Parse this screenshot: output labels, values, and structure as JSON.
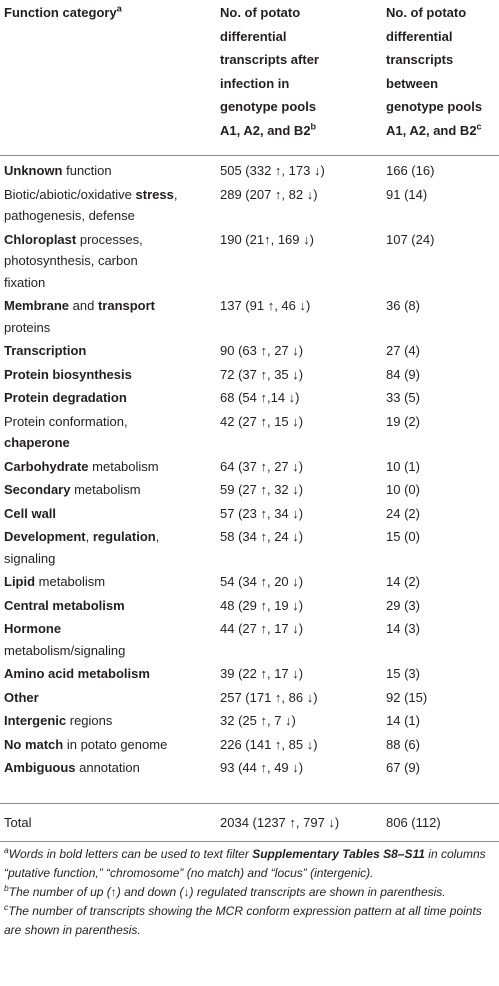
{
  "table": {
    "header": [
      [
        [
          {
            "text": "Function category",
            "bold": true
          },
          {
            "text": "a",
            "bold": true,
            "sup": true
          }
        ]
      ],
      [
        [
          {
            "text": "No. of potato",
            "bold": true
          }
        ],
        [
          {
            "text": "differential",
            "bold": true
          }
        ],
        [
          {
            "text": "transcripts after",
            "bold": true
          }
        ],
        [
          {
            "text": "infection in",
            "bold": true
          }
        ],
        [
          {
            "text": "genotype pools",
            "bold": true
          }
        ],
        [
          {
            "text": "A1, A2, and B2",
            "bold": true
          },
          {
            "text": "b",
            "bold": true,
            "sup": true
          }
        ]
      ],
      [
        [
          {
            "text": "No. of potato",
            "bold": true
          }
        ],
        [
          {
            "text": "differential",
            "bold": true
          }
        ],
        [
          {
            "text": "transcripts",
            "bold": true
          }
        ],
        [
          {
            "text": "between",
            "bold": true
          }
        ],
        [
          {
            "text": "genotype pools",
            "bold": true
          }
        ],
        [
          {
            "text": "A1, A2, and B2",
            "bold": true
          },
          {
            "text": "c",
            "bold": true,
            "sup": true
          }
        ]
      ]
    ],
    "rows": [
      {
        "category": [
          [
            {
              "text": "Unknown",
              "bold": true
            },
            {
              "text": " function"
            }
          ]
        ],
        "differential": "505 (332 ↑, 173 ↓)",
        "between": "166 (16)"
      },
      {
        "category": [
          [
            {
              "text": "Biotic/abiotic/oxidative "
            },
            {
              "text": "stress",
              "bold": true
            },
            {
              "text": ","
            }
          ],
          [
            {
              "text": "pathogenesis, defense"
            }
          ]
        ],
        "differential": "289 (207 ↑, 82 ↓)",
        "between": "91 (14)"
      },
      {
        "category": [
          [
            {
              "text": "Chloroplast",
              "bold": true
            },
            {
              "text": " processes,"
            }
          ],
          [
            {
              "text": "photosynthesis, carbon"
            }
          ],
          [
            {
              "text": "fixation"
            }
          ]
        ],
        "differential": "190 (21↑, 169 ↓)",
        "between": "107 (24)"
      },
      {
        "category": [
          [
            {
              "text": "Membrane",
              "bold": true
            },
            {
              "text": " and "
            },
            {
              "text": "transport",
              "bold": true
            }
          ],
          [
            {
              "text": "proteins"
            }
          ]
        ],
        "differential": "137 (91 ↑, 46 ↓)",
        "between": "36 (8)"
      },
      {
        "category": [
          [
            {
              "text": "Transcription",
              "bold": true
            }
          ]
        ],
        "differential": "90 (63 ↑, 27 ↓)",
        "between": "27 (4)"
      },
      {
        "category": [
          [
            {
              "text": "Protein biosynthesis",
              "bold": true
            }
          ]
        ],
        "differential": "72 (37 ↑, 35 ↓)",
        "between": "84 (9)"
      },
      {
        "category": [
          [
            {
              "text": "Protein degradation",
              "bold": true
            }
          ]
        ],
        "differential": "68 (54 ↑,14 ↓)",
        "between": "33 (5)"
      },
      {
        "category": [
          [
            {
              "text": "Protein conformation,"
            }
          ],
          [
            {
              "text": "chaperone",
              "bold": true
            }
          ]
        ],
        "differential": "42 (27 ↑, 15 ↓)",
        "between": "19 (2)"
      },
      {
        "category": [
          [
            {
              "text": "Carbohydrate",
              "bold": true
            },
            {
              "text": " metabolism"
            }
          ]
        ],
        "differential": "64 (37 ↑, 27 ↓)",
        "between": "10 (1)"
      },
      {
        "category": [
          [
            {
              "text": "Secondary",
              "bold": true
            },
            {
              "text": " metabolism"
            }
          ]
        ],
        "differential": "59 (27 ↑, 32 ↓)",
        "between": "10 (0)"
      },
      {
        "category": [
          [
            {
              "text": "Cell wall",
              "bold": true
            }
          ]
        ],
        "differential": "57 (23 ↑, 34 ↓)",
        "between": "24 (2)"
      },
      {
        "category": [
          [
            {
              "text": "Development",
              "bold": true
            },
            {
              "text": ", "
            },
            {
              "text": "regulation",
              "bold": true
            },
            {
              "text": ","
            }
          ],
          [
            {
              "text": "signaling"
            }
          ]
        ],
        "differential": "58 (34 ↑, 24 ↓)",
        "between": "15 (0)"
      },
      {
        "category": [
          [
            {
              "text": "Lipid",
              "bold": true
            },
            {
              "text": " metabolism"
            }
          ]
        ],
        "differential": "54 (34 ↑, 20 ↓)",
        "between": "14 (2)"
      },
      {
        "category": [
          [
            {
              "text": "Central metabolism",
              "bold": true
            }
          ]
        ],
        "differential": "48 (29 ↑, 19 ↓)",
        "between": "29 (3)"
      },
      {
        "category": [
          [
            {
              "text": "Hormone",
              "bold": true
            }
          ],
          [
            {
              "text": "metabolism/signaling"
            }
          ]
        ],
        "differential": "44 (27 ↑, 17 ↓)",
        "between": "14 (3)"
      },
      {
        "category": [
          [
            {
              "text": "Amino acid metabolism",
              "bold": true
            }
          ]
        ],
        "differential": "39 (22 ↑, 17 ↓)",
        "between": "15 (3)"
      },
      {
        "category": [
          [
            {
              "text": "Other",
              "bold": true
            }
          ]
        ],
        "differential": "257 (171 ↑, 86 ↓)",
        "between": "92 (15)"
      },
      {
        "category": [
          [
            {
              "text": "Intergenic",
              "bold": true
            },
            {
              "text": " regions"
            }
          ]
        ],
        "differential": "32 (25 ↑, 7 ↓)",
        "between": "14 (1)"
      },
      {
        "category": [
          [
            {
              "text": "No match",
              "bold": true
            },
            {
              "text": " in potato genome"
            }
          ]
        ],
        "differential": "226 (141 ↑, 85 ↓)",
        "between": "88 (6)"
      },
      {
        "category": [
          [
            {
              "text": "Ambiguous",
              "bold": true
            },
            {
              "text": " annotation"
            }
          ]
        ],
        "differential": "93 (44 ↑, 49 ↓)",
        "between": "67 (9)"
      }
    ],
    "total": {
      "category": [
        [
          {
            "text": "Total"
          }
        ]
      ],
      "differential": "2034 (1237 ↑, 797 ↓)",
      "between": "806 (112)"
    }
  },
  "footnotes": [
    {
      "mark": "a",
      "text": [
        {
          "text": "Words in bold letters can be used to text filter "
        },
        {
          "text": "Supplementary Tables S8–S11",
          "bold": true
        },
        {
          "text": " in columns “putative function,” “chromosome” (no match) and “locus” (intergenic)."
        }
      ]
    },
    {
      "mark": "b",
      "text": [
        {
          "text": "The number of up (↑) and down (↓) regulated transcripts are shown in parenthesis."
        }
      ]
    },
    {
      "mark": "c",
      "text": [
        {
          "text": "The number of transcripts showing the MCR conform expression pattern at all time points are shown in parenthesis."
        }
      ]
    }
  ]
}
